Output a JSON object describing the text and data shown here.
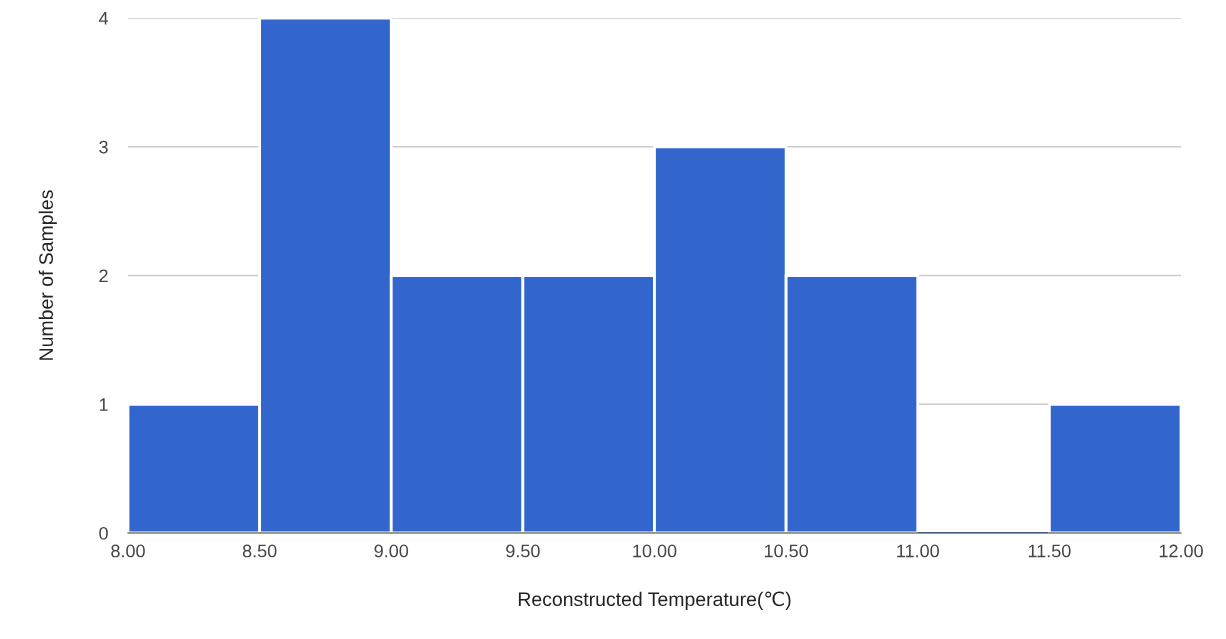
{
  "chart_data": {
    "type": "histogram",
    "xlabel": "Reconstructed Temperature(℃)",
    "ylabel": "Number of Samples",
    "bins": [
      8.0,
      8.5,
      9.0,
      9.5,
      10.0,
      10.5,
      11.0,
      11.5,
      12.0
    ],
    "values": [
      1,
      4,
      2,
      2,
      3,
      2,
      0,
      1
    ],
    "color": "#3366cc",
    "xlim": [
      8.0,
      12.0
    ],
    "xticks": [
      {
        "value": 8.0,
        "label": "8.00"
      },
      {
        "value": 8.5,
        "label": "8.50"
      },
      {
        "value": 9.0,
        "label": "9.00"
      },
      {
        "value": 9.5,
        "label": "9.50"
      },
      {
        "value": 10.0,
        "label": "10.00"
      },
      {
        "value": 10.5,
        "label": "10.50"
      },
      {
        "value": 11.0,
        "label": "11.00"
      },
      {
        "value": 11.5,
        "label": "11.50"
      },
      {
        "value": 12.0,
        "label": "12.00"
      }
    ],
    "ylim": [
      0,
      4
    ],
    "yticks": [
      0,
      1,
      2,
      3,
      4
    ],
    "grid": "y"
  }
}
